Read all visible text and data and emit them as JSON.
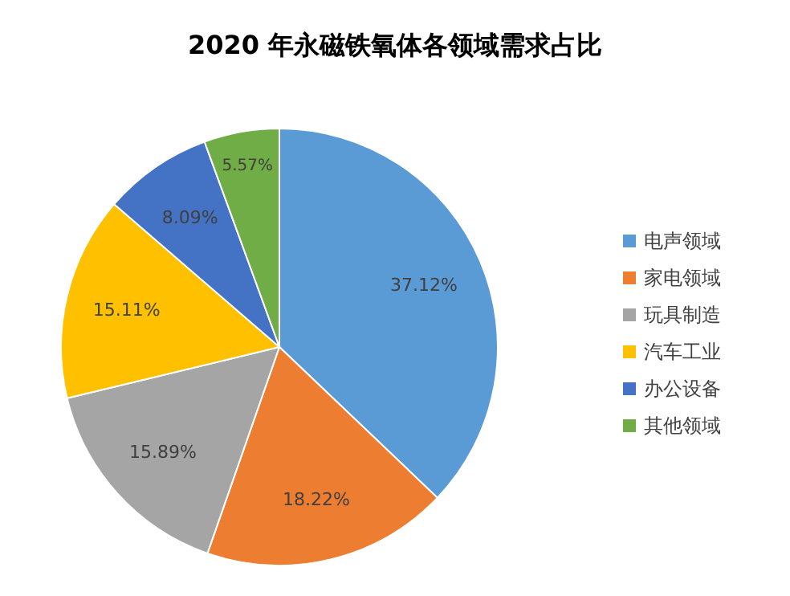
{
  "chart_data": {
    "type": "pie",
    "title": "2020 年永磁铁氧体各领域需求占比",
    "categories": [
      "电声领域",
      "家电领域",
      "玩具制造",
      "汽车工业",
      "办公设备",
      "其他领域"
    ],
    "values": [
      37.12,
      18.22,
      15.89,
      15.11,
      8.09,
      5.57
    ],
    "value_labels": [
      "37.12%",
      "18.22%",
      "15.89%",
      "15.11%",
      "8.09%",
      "5.57%"
    ],
    "colors": [
      "#5b9bd5",
      "#ed7d31",
      "#a5a5a5",
      "#ffc000",
      "#4472c4",
      "#70ad47"
    ],
    "legend": "right"
  }
}
